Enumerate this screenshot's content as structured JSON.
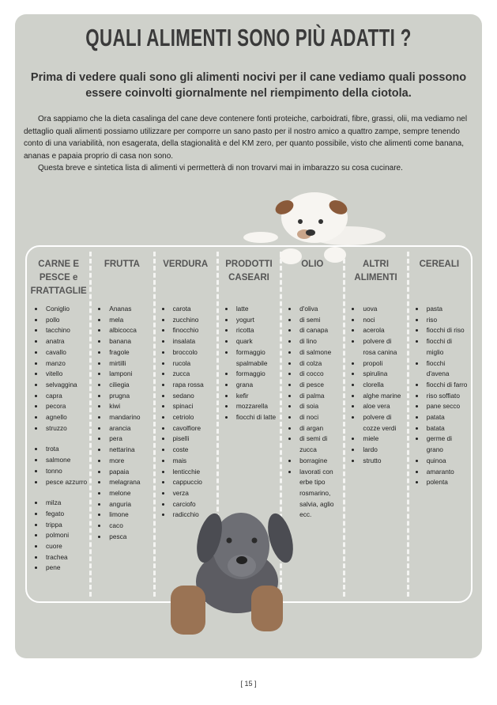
{
  "header": {
    "title": "QUALI ALIMENTI SONO PIÙ ADATTI ?",
    "subtitle": "Prima di vedere quali sono gli alimenti nocivi per il cane vediamo quali possono essere coinvolti giornalmente nel riempimento della ciotola."
  },
  "intro": [
    "Ora sappiamo che la dieta casalinga del cane deve contenere fonti proteiche, carboidrati, fibre, grassi, olii, ma vediamo nel dettaglio quali alimenti possiamo utilizzare per comporre un sano pasto per il nostro amico a quattro zampe, sempre tenendo conto di una variabilità, non esagerata, della stagionalità e del KM zero, per quanto possibile, visto che alimenti come banana, ananas e papaia proprio di casa non sono.",
    "Questa breve e sintetica lista di alimenti vi permetterà di non trovarvi mai in imbarazzo su cosa cucinare."
  ],
  "columns": [
    {
      "header": "CARNE E PESCE e FRATTAGLIE",
      "groups": [
        [
          "Coniglio",
          "pollo",
          "tacchino",
          "anatra",
          "cavallo",
          "manzo",
          "vitello",
          "selvaggina",
          "capra",
          "pecora",
          "agnello",
          "struzzo"
        ],
        [
          "trota",
          "salmone",
          "tonno",
          "pesce azzurro"
        ],
        [
          "milza",
          "fegato",
          "trippa",
          "polmoni",
          "cuore",
          "trachea",
          "pene"
        ]
      ]
    },
    {
      "header": "FRUTTA",
      "groups": [
        [
          "Ananas",
          "mela",
          "albicocca",
          "banana",
          "fragole",
          "mirtilli",
          "lamponi",
          "ciliegia",
          "prugna",
          "kiwi",
          "mandarino",
          "arancia",
          "pera",
          "nettarina",
          "more",
          "papaia",
          "melagrana",
          "melone",
          "anguria",
          "limone",
          "caco",
          "pesca"
        ]
      ]
    },
    {
      "header": "VERDURA",
      "groups": [
        [
          "carota",
          "zucchino",
          "finocchio",
          "insalata",
          "broccolo",
          "rucola",
          "zucca",
          "rapa rossa",
          "sedano",
          "spinaci",
          "cetriolo",
          "cavolfiore",
          "piselli",
          "coste",
          "mais",
          "lenticchie",
          "cappuccio",
          "verza",
          "carciofo",
          "radicchio"
        ]
      ]
    },
    {
      "header": "PRODOTTI CASEARI",
      "groups": [
        [
          "latte",
          "yogurt",
          "ricotta",
          "quark",
          "formaggio spalmabile",
          "formaggio",
          "grana",
          "kefir",
          "mozzarella",
          "fiocchi di latte"
        ]
      ]
    },
    {
      "header": "OLIO",
      "groups": [
        [
          "d'oliva",
          "di semi",
          "di canapa",
          "di lino",
          "di salmone",
          "di colza",
          "di cocco",
          "di pesce",
          "di palma",
          "di soia",
          "di noci",
          "di argan",
          "di semi di zucca",
          "borragine",
          "lavorati con erbe tipo rosmarino, salvia, aglio ecc."
        ]
      ]
    },
    {
      "header": "ALTRI ALIMENTI",
      "groups": [
        [
          "uova",
          "noci",
          "acerola",
          "polvere di rosa canina",
          "propoli",
          "spirulina",
          "clorella",
          "alghe marine",
          "aloe vera",
          "polvere di cozze verdi",
          "miele",
          "lardo",
          "strutto"
        ]
      ]
    },
    {
      "header": "CEREALI",
      "groups": [
        [
          "pasta",
          "riso",
          "fiocchi di riso",
          "fiocchi di miglio",
          "fiocchi d'avena",
          "fiocchi di farro",
          "riso soffiato",
          "pane secco",
          "patata",
          "batata",
          "germe di grano",
          "quinoa",
          "amaranto",
          "polenta"
        ]
      ]
    }
  ],
  "footer": {
    "page_number": "[ 15 ]"
  }
}
